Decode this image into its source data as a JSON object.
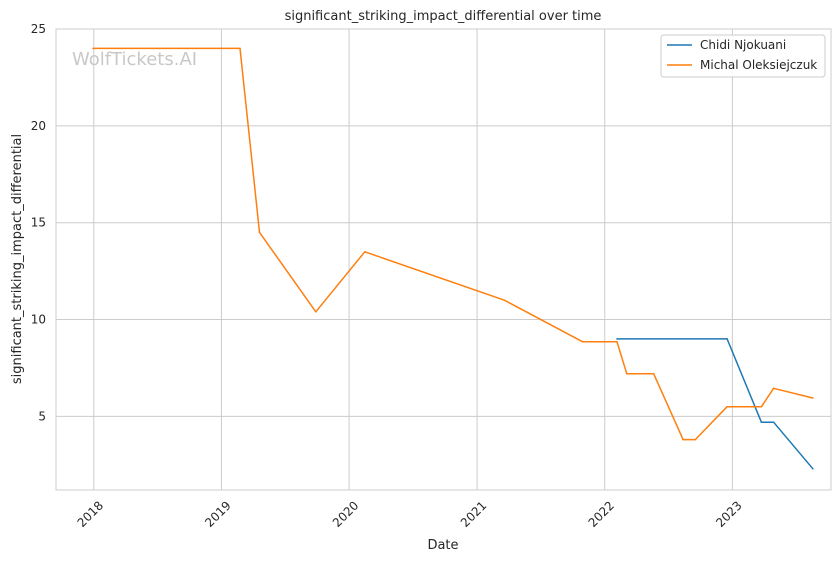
{
  "chart_data": {
    "type": "line",
    "title": "significant_striking_impact_differential over time",
    "xlabel": "Date",
    "ylabel": "significant_striking_impact_differential",
    "watermark": "WolfTickets.AI",
    "x_type": "date",
    "xlim": [
      "2017-09-15",
      "2023-10-10"
    ],
    "ylim": [
      1.2,
      25
    ],
    "x_ticks": [
      {
        "date": "2018-01-01",
        "label": "2018"
      },
      {
        "date": "2019-01-01",
        "label": "2019"
      },
      {
        "date": "2020-01-01",
        "label": "2020"
      },
      {
        "date": "2021-01-01",
        "label": "2021"
      },
      {
        "date": "2022-01-01",
        "label": "2022"
      },
      {
        "date": "2023-01-01",
        "label": "2023"
      }
    ],
    "y_ticks": [
      {
        "value": 5,
        "label": "5"
      },
      {
        "value": 10,
        "label": "10"
      },
      {
        "value": 15,
        "label": "15"
      },
      {
        "value": 20,
        "label": "20"
      },
      {
        "value": 25,
        "label": "25"
      }
    ],
    "grid": true,
    "legend_position": "top-right",
    "series": [
      {
        "name": "Chidi Njokuani",
        "color": "#1f77b4",
        "points": [
          {
            "x": "2022-02-05",
            "y": 9.0
          },
          {
            "x": "2022-12-17",
            "y": 9.0
          },
          {
            "x": "2023-03-25",
            "y": 4.7
          },
          {
            "x": "2023-04-29",
            "y": 4.7
          },
          {
            "x": "2023-08-19",
            "y": 2.3
          }
        ]
      },
      {
        "name": "Michal Oleksiejczuk",
        "color": "#ff7f0e",
        "points": [
          {
            "x": "2017-12-30",
            "y": 24.0
          },
          {
            "x": "2019-02-23",
            "y": 24.0
          },
          {
            "x": "2019-04-20",
            "y": 14.5
          },
          {
            "x": "2019-09-28",
            "y": 10.4
          },
          {
            "x": "2020-02-15",
            "y": 13.5
          },
          {
            "x": "2021-03-20",
            "y": 11.0
          },
          {
            "x": "2021-10-30",
            "y": 8.85
          },
          {
            "x": "2022-02-05",
            "y": 8.85
          },
          {
            "x": "2022-03-05",
            "y": 7.2
          },
          {
            "x": "2022-05-21",
            "y": 7.2
          },
          {
            "x": "2022-08-13",
            "y": 3.8
          },
          {
            "x": "2022-09-17",
            "y": 3.8
          },
          {
            "x": "2022-12-17",
            "y": 5.5
          },
          {
            "x": "2023-03-25",
            "y": 5.5
          },
          {
            "x": "2023-04-29",
            "y": 6.45
          },
          {
            "x": "2023-08-19",
            "y": 5.95
          }
        ]
      }
    ]
  }
}
